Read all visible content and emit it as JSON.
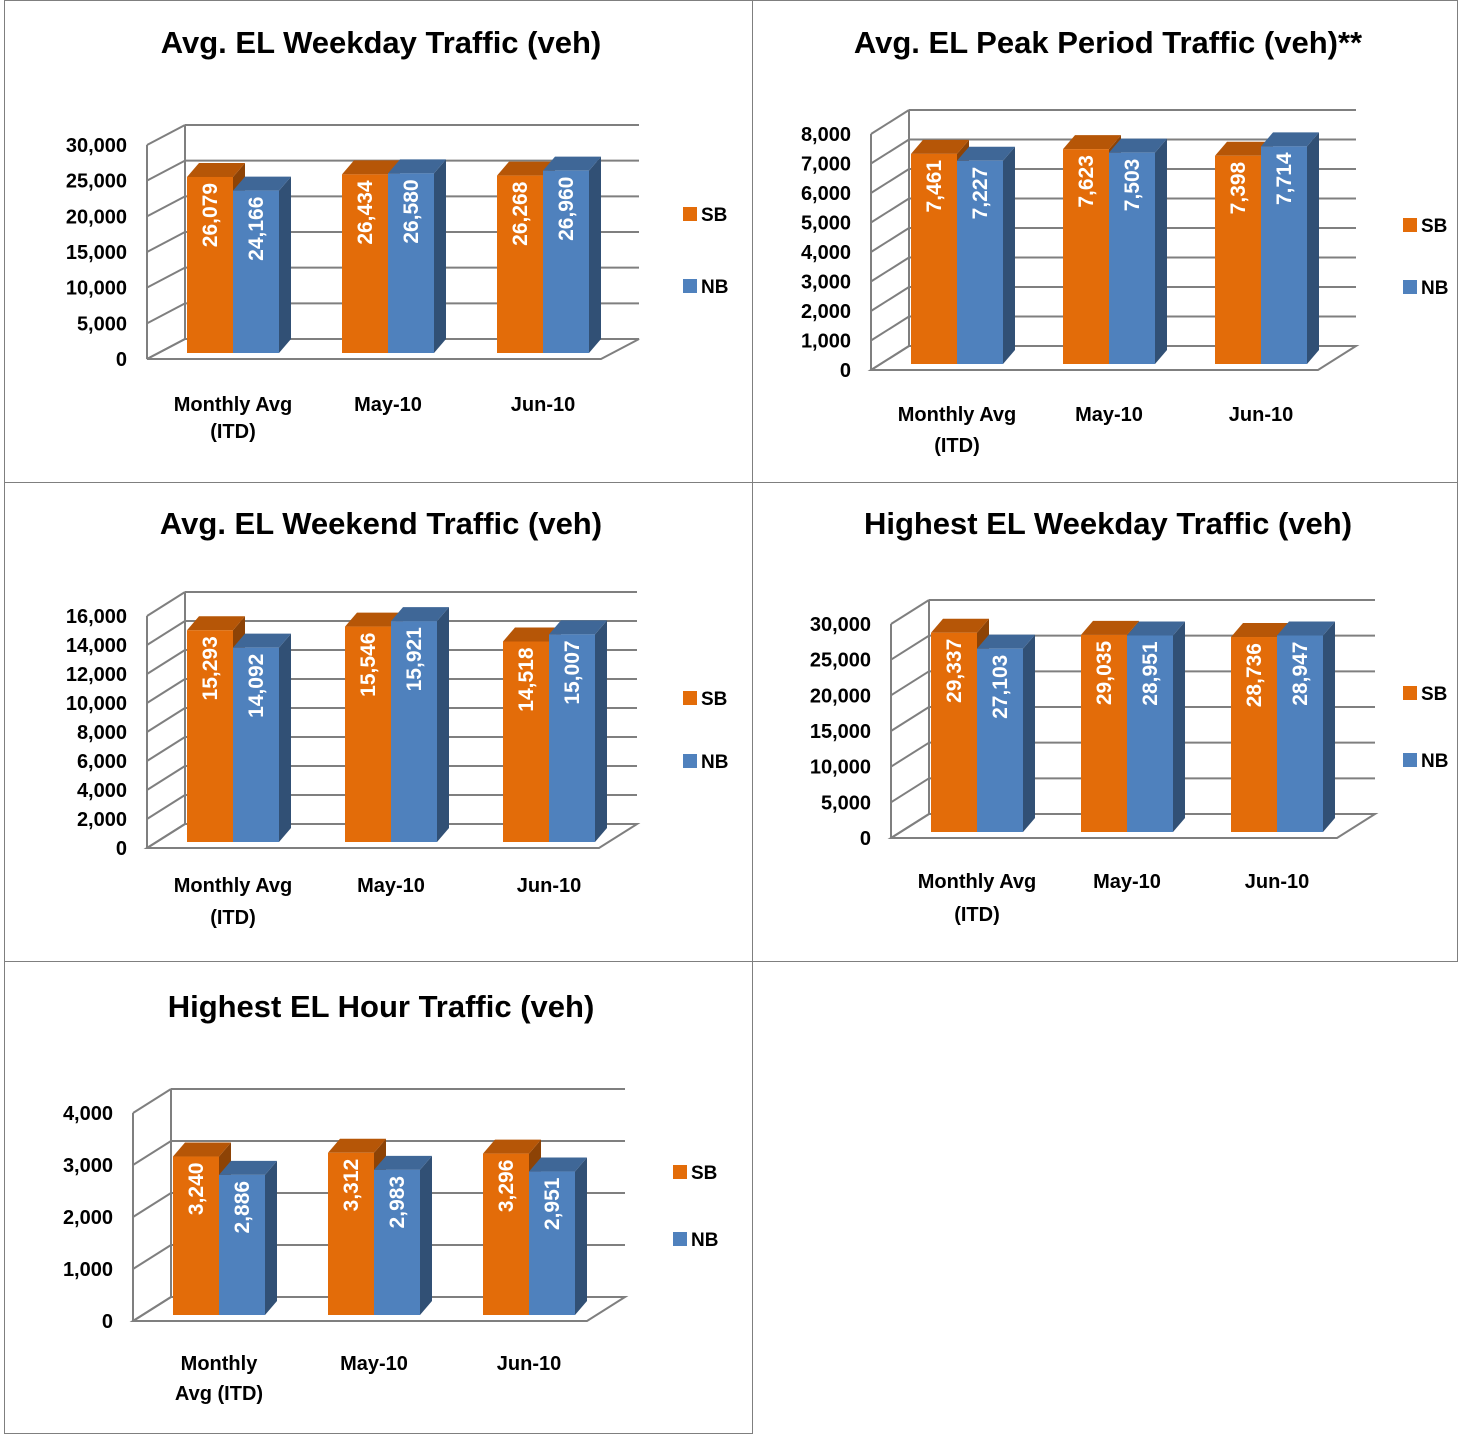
{
  "colors": {
    "SB": "#E36C09",
    "NB": "#4F81BD",
    "grid": "#7F7F7F"
  },
  "legend": [
    "SB",
    "NB"
  ],
  "chart_data": [
    {
      "type": "bar",
      "title": "Avg. EL Weekday Traffic (veh)",
      "categories": [
        [
          "Monthly Avg",
          "(ITD)"
        ],
        [
          "May-10"
        ],
        [
          "Jun-10"
        ]
      ],
      "series": [
        {
          "name": "SB",
          "values": [
            26079,
            26434,
            26268
          ],
          "labels": [
            "26,079",
            "26,434",
            "26,268"
          ]
        },
        {
          "name": "NB",
          "values": [
            24166,
            26580,
            26960
          ],
          "labels": [
            "24,166",
            "26,580",
            "26,960"
          ]
        }
      ],
      "ylim": [
        0,
        30000
      ],
      "yticks": [
        "0",
        "5,000",
        "10,000",
        "15,000",
        "20,000",
        "25,000",
        "30,000"
      ],
      "grid": true,
      "legend_position": "right"
    },
    {
      "type": "bar",
      "title": "Avg. EL Peak Period Traffic (veh)**",
      "categories": [
        [
          "Monthly Avg",
          "(ITD)"
        ],
        [
          "May-10"
        ],
        [
          "Jun-10"
        ]
      ],
      "series": [
        {
          "name": "SB",
          "values": [
            7461,
            7623,
            7398
          ],
          "labels": [
            "7,461",
            "7,623",
            "7,398"
          ]
        },
        {
          "name": "NB",
          "values": [
            7227,
            7503,
            7714
          ],
          "labels": [
            "7,227",
            "7,503",
            "7,714"
          ]
        }
      ],
      "ylim": [
        0,
        8000
      ],
      "yticks": [
        "0",
        "1,000",
        "2,000",
        "3,000",
        "4,000",
        "5,000",
        "6,000",
        "7,000",
        "8,000"
      ],
      "grid": true,
      "legend_position": "right"
    },
    {
      "type": "bar",
      "title": "Avg. EL Weekend Traffic (veh)",
      "categories": [
        [
          "Monthly Avg",
          "(ITD)"
        ],
        [
          "May-10"
        ],
        [
          "Jun-10"
        ]
      ],
      "series": [
        {
          "name": "SB",
          "values": [
            15293,
            15546,
            14518
          ],
          "labels": [
            "15,293",
            "15,546",
            "14,518"
          ]
        },
        {
          "name": "NB",
          "values": [
            14092,
            15921,
            15007
          ],
          "labels": [
            "14,092",
            "15,921",
            "15,007"
          ]
        }
      ],
      "ylim": [
        0,
        16000
      ],
      "yticks": [
        "0",
        "2,000",
        "4,000",
        "6,000",
        "8,000",
        "10,000",
        "12,000",
        "14,000",
        "16,000"
      ],
      "grid": true,
      "legend_position": "right"
    },
    {
      "type": "bar",
      "title": "Highest EL Weekday Traffic (veh)",
      "categories": [
        [
          "Monthly Avg",
          "(ITD)"
        ],
        [
          "May-10"
        ],
        [
          "Jun-10"
        ]
      ],
      "series": [
        {
          "name": "SB",
          "values": [
            29337,
            29035,
            28736
          ],
          "labels": [
            "29,337",
            "29,035",
            "28,736"
          ]
        },
        {
          "name": "NB",
          "values": [
            27103,
            28951,
            28947
          ],
          "labels": [
            "27,103",
            "28,951",
            "28,947"
          ]
        }
      ],
      "ylim": [
        0,
        30000
      ],
      "yticks": [
        "0",
        "5,000",
        "10,000",
        "15,000",
        "20,000",
        "25,000",
        "30,000"
      ],
      "grid": true,
      "legend_position": "right"
    },
    {
      "type": "bar",
      "title": "Highest EL Hour Traffic (veh)",
      "categories": [
        [
          "Monthly",
          "Avg (ITD)"
        ],
        [
          "May-10"
        ],
        [
          "Jun-10"
        ]
      ],
      "series": [
        {
          "name": "SB",
          "values": [
            3240,
            3312,
            3296
          ],
          "labels": [
            "3,240",
            "3,312",
            "3,296"
          ]
        },
        {
          "name": "NB",
          "values": [
            2886,
            2983,
            2951
          ],
          "labels": [
            "2,886",
            "2,983",
            "2,951"
          ]
        }
      ],
      "ylim": [
        0,
        4000
      ],
      "yticks": [
        "0",
        "1,000",
        "2,000",
        "3,000",
        "4,000"
      ],
      "grid": true,
      "legend_position": "right"
    }
  ]
}
